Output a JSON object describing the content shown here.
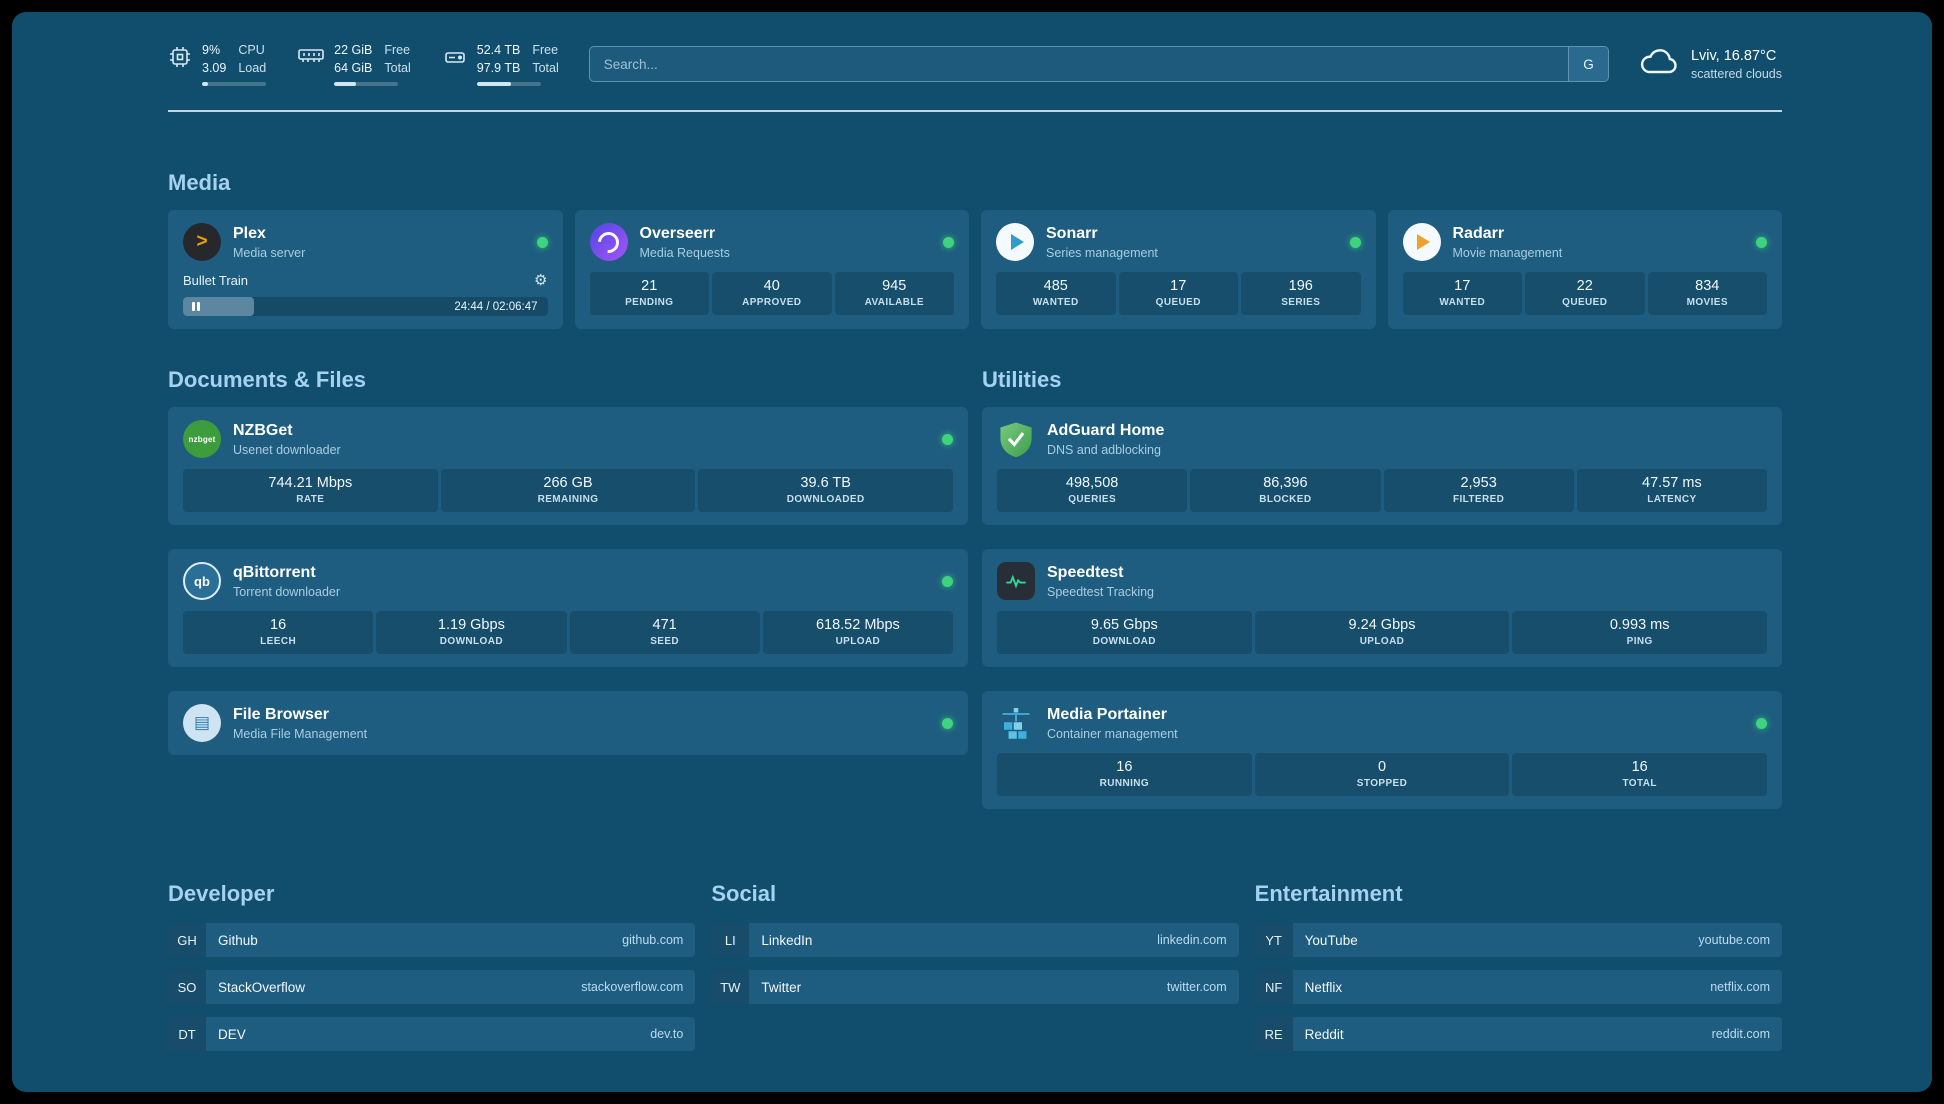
{
  "topbar": {
    "cpu": {
      "value_top": "9%",
      "value_bottom": "3.09",
      "label_top": "CPU",
      "label_bottom": "Load",
      "progress": 9
    },
    "ram": {
      "value_top": "22 GiB",
      "value_bottom": "64 GiB",
      "label_top": "Free",
      "label_bottom": "Total",
      "progress": 34
    },
    "disk": {
      "value_top": "52.4 TB",
      "value_bottom": "97.9 TB",
      "label_top": "Free",
      "label_bottom": "Total",
      "progress": 53
    },
    "search": {
      "placeholder": "Search...",
      "engine_button": "G"
    },
    "weather": {
      "location": "Lviv, 16.87°C",
      "condition": "scattered clouds"
    }
  },
  "sections": {
    "media": "Media",
    "documents": "Documents & Files",
    "utilities": "Utilities",
    "developer": "Developer",
    "social": "Social",
    "entertainment": "Entertainment"
  },
  "media": {
    "plex": {
      "name": "Plex",
      "subtitle": "Media server",
      "now_playing": "Bullet Train",
      "time": "24:44 / 02:06:47",
      "progress": 19.5
    },
    "overseerr": {
      "name": "Overseerr",
      "subtitle": "Media Requests",
      "stats": [
        {
          "value": "21",
          "label": "PENDING"
        },
        {
          "value": "40",
          "label": "APPROVED"
        },
        {
          "value": "945",
          "label": "AVAILABLE"
        }
      ]
    },
    "sonarr": {
      "name": "Sonarr",
      "subtitle": "Series management",
      "stats": [
        {
          "value": "485",
          "label": "WANTED"
        },
        {
          "value": "17",
          "label": "QUEUED"
        },
        {
          "value": "196",
          "label": "SERIES"
        }
      ]
    },
    "radarr": {
      "name": "Radarr",
      "subtitle": "Movie management",
      "stats": [
        {
          "value": "17",
          "label": "WANTED"
        },
        {
          "value": "22",
          "label": "QUEUED"
        },
        {
          "value": "834",
          "label": "MOVIES"
        }
      ]
    }
  },
  "documents": {
    "nzbget": {
      "name": "NZBGet",
      "subtitle": "Usenet downloader",
      "icon_text": "nzbget",
      "stats": [
        {
          "value": "744.21 Mbps",
          "label": "RATE"
        },
        {
          "value": "266 GB",
          "label": "REMAINING"
        },
        {
          "value": "39.6 TB",
          "label": "DOWNLOADED"
        }
      ]
    },
    "qbittorrent": {
      "name": "qBittorrent",
      "subtitle": "Torrent downloader",
      "icon_text": "qb",
      "stats": [
        {
          "value": "16",
          "label": "LEECH"
        },
        {
          "value": "1.19 Gbps",
          "label": "DOWNLOAD"
        },
        {
          "value": "471",
          "label": "SEED"
        },
        {
          "value": "618.52 Mbps",
          "label": "UPLOAD"
        }
      ]
    },
    "filebrowser": {
      "name": "File Browser",
      "subtitle": "Media File Management"
    }
  },
  "utilities": {
    "adguard": {
      "name": "AdGuard Home",
      "subtitle": "DNS and adblocking",
      "stats": [
        {
          "value": "498,508",
          "label": "QUERIES"
        },
        {
          "value": "86,396",
          "label": "BLOCKED"
        },
        {
          "value": "2,953",
          "label": "FILTERED"
        },
        {
          "value": "47.57 ms",
          "label": "LATENCY"
        }
      ]
    },
    "speedtest": {
      "name": "Speedtest",
      "subtitle": "Speedtest Tracking",
      "stats": [
        {
          "value": "9.65 Gbps",
          "label": "DOWNLOAD"
        },
        {
          "value": "9.24 Gbps",
          "label": "UPLOAD"
        },
        {
          "value": "0.993 ms",
          "label": "PING"
        }
      ]
    },
    "portainer": {
      "name": "Media Portainer",
      "subtitle": "Container management",
      "stats": [
        {
          "value": "16",
          "label": "RUNNING"
        },
        {
          "value": "0",
          "label": "STOPPED"
        },
        {
          "value": "16",
          "label": "TOTAL"
        }
      ]
    }
  },
  "bookmarks": {
    "developer": [
      {
        "abbr": "GH",
        "name": "Github",
        "url": "github.com"
      },
      {
        "abbr": "SO",
        "name": "StackOverflow",
        "url": "stackoverflow.com"
      },
      {
        "abbr": "DT",
        "name": "DEV",
        "url": "dev.to"
      }
    ],
    "social": [
      {
        "abbr": "LI",
        "name": "LinkedIn",
        "url": "linkedin.com"
      },
      {
        "abbr": "TW",
        "name": "Twitter",
        "url": "twitter.com"
      }
    ],
    "entertainment": [
      {
        "abbr": "YT",
        "name": "YouTube",
        "url": "youtube.com"
      },
      {
        "abbr": "NF",
        "name": "Netflix",
        "url": "netflix.com"
      },
      {
        "abbr": "RE",
        "name": "Reddit",
        "url": "reddit.com"
      }
    ]
  }
}
